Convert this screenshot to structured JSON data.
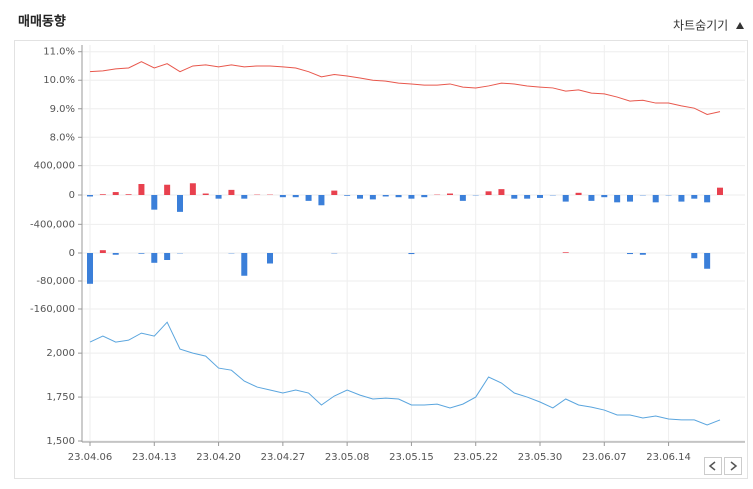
{
  "header": {
    "title": "매매동향",
    "toggle": "차트숨기기"
  },
  "chart_data": [
    {
      "type": "line",
      "color": "#e8574c",
      "values": [
        10.3,
        10.33,
        10.4,
        10.43,
        10.65,
        10.43,
        10.58,
        10.3,
        10.5,
        10.54,
        10.47,
        10.54,
        10.47,
        10.5,
        10.5,
        10.47,
        10.43,
        10.3,
        10.12,
        10.2,
        10.15,
        10.08,
        10.0,
        9.97,
        9.9,
        9.87,
        9.83,
        9.83,
        9.87,
        9.76,
        9.73,
        9.8,
        9.9,
        9.87,
        9.8,
        9.76,
        9.73,
        9.62,
        9.66,
        9.55,
        9.52,
        9.41,
        9.27,
        9.3,
        9.2,
        9.2,
        9.1,
        9.02,
        8.8,
        8.9
      ],
      "ylim": [
        7.8,
        11.2
      ],
      "yticks": [
        {
          "value": 11,
          "label": "11.0%"
        },
        {
          "value": 10,
          "label": "10.0%"
        },
        {
          "value": 9,
          "label": "9.0%"
        },
        {
          "value": 8,
          "label": "8.0%"
        }
      ]
    },
    {
      "type": "bar",
      "colors": {
        "up": "#e8414e",
        "down": "#3b7fd9"
      },
      "values": [
        -20000,
        10000,
        40000,
        10000,
        150000,
        -200000,
        140000,
        -230000,
        160000,
        20000,
        -50000,
        70000,
        -50000,
        5000,
        5000,
        -30000,
        -30000,
        -80000,
        -140000,
        60000,
        -10000,
        -50000,
        -60000,
        -20000,
        -30000,
        -50000,
        -30000,
        5000,
        20000,
        -80000,
        -5000,
        50000,
        80000,
        -50000,
        -50000,
        -40000,
        -5000,
        -90000,
        30000,
        -80000,
        -30000,
        -100000,
        -90000,
        -5000,
        -100000,
        -5000,
        -90000,
        -50000,
        -100000,
        100000
      ],
      "ylim": [
        -600000,
        600000
      ],
      "yticks": [
        {
          "value": 400000,
          "label": "400,000"
        },
        0,
        {
          "value": -400000,
          "label": "-400,000"
        }
      ]
    },
    {
      "type": "bar",
      "colors": {
        "up": "#e8414e",
        "down": "#3b7fd9"
      },
      "values": [
        -88000,
        8000,
        -5000,
        0,
        -2000,
        -28000,
        -20000,
        -1000,
        0,
        0,
        0,
        -1000,
        -65000,
        0,
        -30000,
        0,
        0,
        0,
        0,
        -1000,
        0,
        0,
        0,
        0,
        0,
        -3000,
        0,
        0,
        0,
        0,
        0,
        0,
        0,
        0,
        0,
        0,
        0,
        2000,
        0,
        0,
        0,
        0,
        -3000,
        -5000,
        0,
        0,
        0,
        -15000,
        -45000,
        0
      ],
      "ylim": [
        -180000,
        20000
      ],
      "yticks": [
        0,
        {
          "value": -80000,
          "label": "-80,000"
        },
        {
          "value": -160000,
          "label": "-160,000"
        }
      ]
    },
    {
      "type": "line",
      "color": "#5aa5de",
      "categories": [
        "23.04.06",
        null,
        null,
        null,
        null,
        "23.04.13",
        null,
        null,
        null,
        null,
        "23.04.20",
        null,
        null,
        null,
        null,
        "23.04.27",
        null,
        null,
        null,
        null,
        "23.05.08",
        null,
        null,
        null,
        null,
        "23.05.15",
        null,
        null,
        null,
        null,
        "23.05.22",
        null,
        null,
        null,
        null,
        "23.05.30",
        null,
        null,
        null,
        null,
        "23.06.07",
        null,
        null,
        null,
        null,
        "23.06.14",
        null,
        null,
        null,
        null
      ],
      "values": [
        2063,
        2097,
        2063,
        2074,
        2114,
        2097,
        2176,
        2023,
        2000,
        1983,
        1915,
        1903,
        1841,
        1807,
        1790,
        1773,
        1790,
        1773,
        1705,
        1756,
        1790,
        1761,
        1739,
        1744,
        1739,
        1705,
        1705,
        1710,
        1688,
        1710,
        1750,
        1864,
        1830,
        1773,
        1750,
        1722,
        1688,
        1739,
        1705,
        1693,
        1676,
        1648,
        1648,
        1631,
        1642,
        1625,
        1620,
        1620,
        1591,
        1620
      ],
      "ylim": [
        1500,
        2200
      ],
      "yticks": [
        {
          "value": 2000,
          "label": "2,000"
        },
        {
          "value": 1750,
          "label": "1,750"
        },
        {
          "value": 1500,
          "label": "1,500"
        }
      ]
    }
  ]
}
